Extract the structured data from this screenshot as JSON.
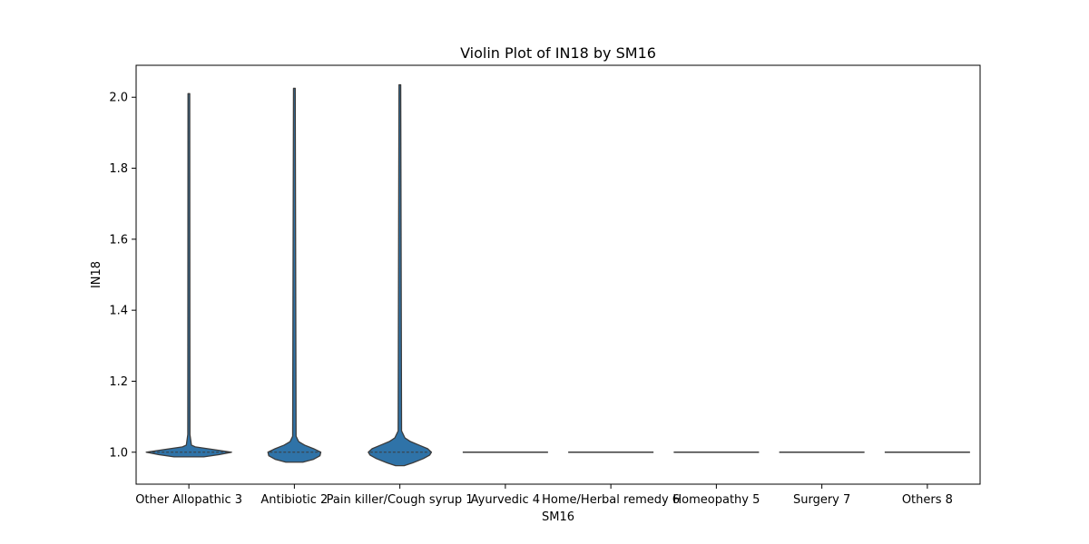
{
  "chart_data": {
    "type": "violin",
    "title": "Violin Plot of IN18 by SM16",
    "xlabel": "SM16",
    "ylabel": "IN18",
    "ylim": [
      0.91,
      2.09
    ],
    "yticks": [
      1.0,
      1.2,
      1.4,
      1.6,
      1.8,
      2.0
    ],
    "grid": false,
    "legend": "none",
    "colors": {
      "violin_fill": "#2f73a8",
      "violin_edge": "#3b3b3b",
      "axis": "#000000"
    },
    "categories": [
      "Other Allopathic 3",
      "Antibiotic 2",
      "Pain killer/Cough syrup 1",
      "Ayurvedic 4",
      "Home/Herbal remedy 6",
      "Homeopathy 5",
      "Surgery 7",
      "Others 8"
    ],
    "violins": [
      {
        "category": "Other Allopathic 3",
        "min": 0.987,
        "max": 2.01,
        "median": 1.0,
        "profile": [
          [
            0.987,
            0.35
          ],
          [
            0.993,
            0.7
          ],
          [
            1.0,
            1.0
          ],
          [
            1.008,
            0.55
          ],
          [
            1.015,
            0.15
          ],
          [
            1.02,
            0.06
          ],
          [
            1.05,
            0.025
          ],
          [
            2.01,
            0.02
          ]
        ]
      },
      {
        "category": "Antibiotic 2",
        "min": 0.972,
        "max": 2.025,
        "median": 1.0,
        "profile": [
          [
            0.972,
            0.2
          ],
          [
            0.98,
            0.45
          ],
          [
            0.99,
            0.6
          ],
          [
            1.0,
            0.62
          ],
          [
            1.01,
            0.45
          ],
          [
            1.02,
            0.24
          ],
          [
            1.03,
            0.1
          ],
          [
            1.045,
            0.04
          ],
          [
            2.025,
            0.02
          ]
        ]
      },
      {
        "category": "Pain killer/Cough syrup 1",
        "min": 0.962,
        "max": 2.035,
        "median": 1.0,
        "profile": [
          [
            0.962,
            0.1
          ],
          [
            0.97,
            0.3
          ],
          [
            0.982,
            0.55
          ],
          [
            0.992,
            0.7
          ],
          [
            1.0,
            0.74
          ],
          [
            1.01,
            0.65
          ],
          [
            1.02,
            0.45
          ],
          [
            1.03,
            0.25
          ],
          [
            1.04,
            0.12
          ],
          [
            1.06,
            0.04
          ],
          [
            2.035,
            0.02
          ]
        ]
      },
      {
        "category": "Ayurvedic 4",
        "min": 1.0,
        "max": 1.0,
        "median": 1.0,
        "profile": []
      },
      {
        "category": "Home/Herbal remedy 6",
        "min": 1.0,
        "max": 1.0,
        "median": 1.0,
        "profile": []
      },
      {
        "category": "Homeopathy 5",
        "min": 1.0,
        "max": 1.0,
        "median": 1.0,
        "profile": []
      },
      {
        "category": "Surgery 7",
        "min": 1.0,
        "max": 1.0,
        "median": 1.0,
        "profile": []
      },
      {
        "category": "Others 8",
        "min": 1.0,
        "max": 1.0,
        "median": 1.0,
        "profile": []
      }
    ]
  }
}
